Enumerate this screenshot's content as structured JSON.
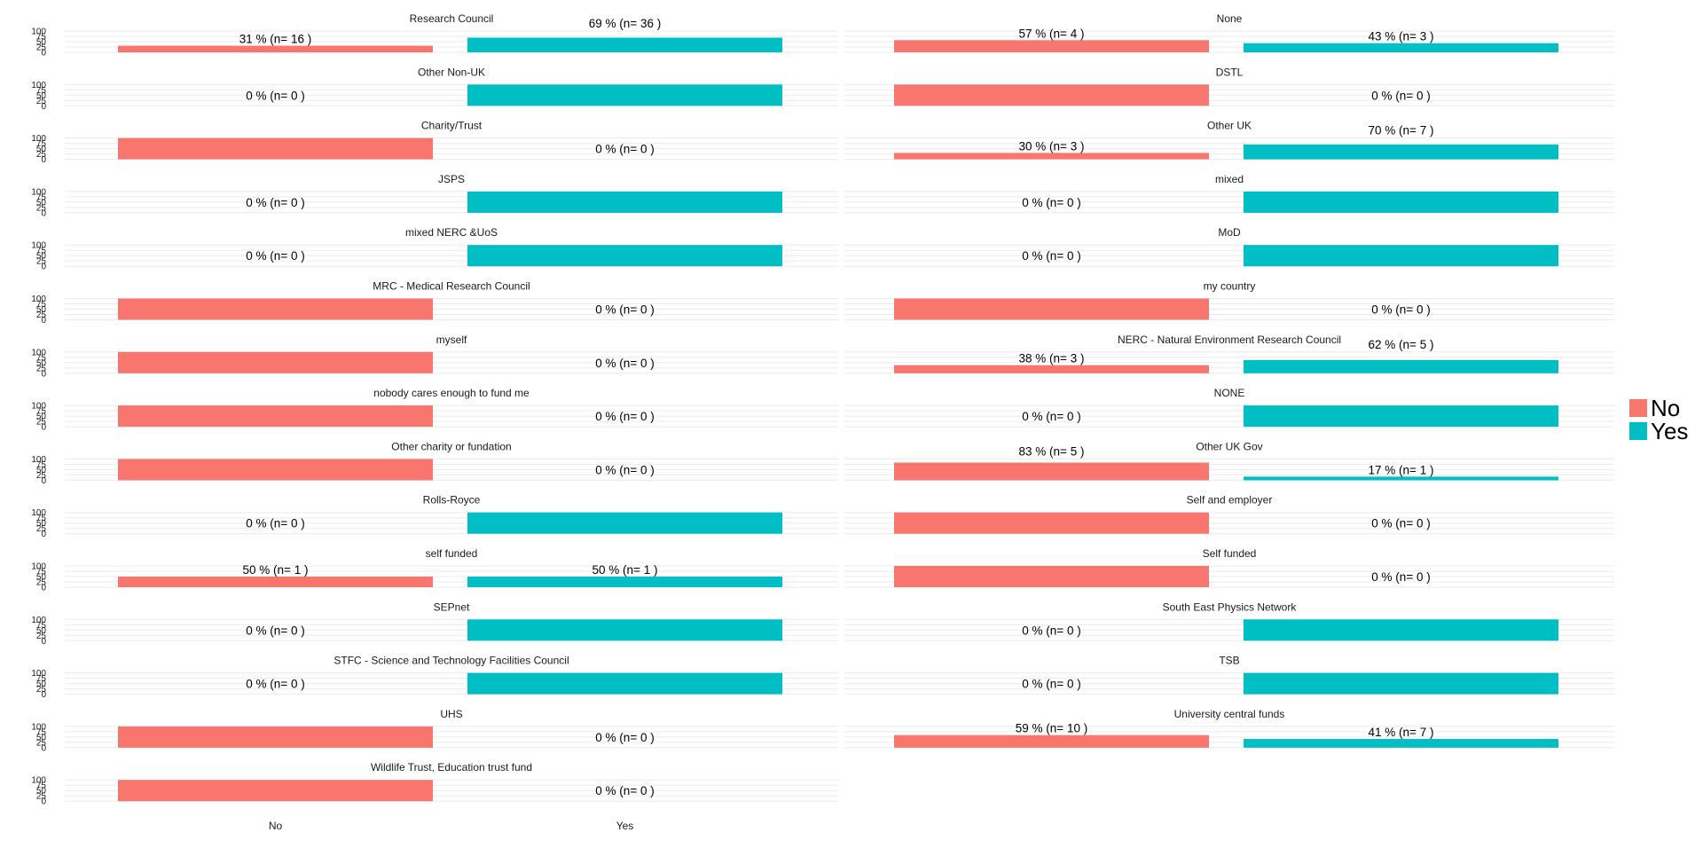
{
  "chart_data": {
    "type": "bar",
    "facet_columns": 2,
    "categories": [
      "No",
      "Yes"
    ],
    "y_ticks": [
      "100",
      "75",
      "50",
      "25",
      "0"
    ],
    "ylim": [
      0,
      100
    ],
    "colors": {
      "No": "#F8766D",
      "Yes": "#00BFC4"
    },
    "legend": {
      "position": "right",
      "entries": [
        "No",
        "Yes"
      ]
    },
    "xlabel": "",
    "ylabel": "",
    "panels": [
      {
        "title": "Research Council",
        "values": [
          31,
          69
        ],
        "labels": [
          "31 %  (n= 16 )",
          "69 %  (n= 36 )"
        ]
      },
      {
        "title": "None",
        "values": [
          57,
          43
        ],
        "labels": [
          "57 %  (n= 4 )",
          "43 %  (n= 3 )"
        ]
      },
      {
        "title": "Other Non-UK",
        "values": [
          0,
          100
        ],
        "labels": [
          "0 %  (n= 0 )",
          ""
        ]
      },
      {
        "title": "DSTL",
        "values": [
          100,
          0
        ],
        "labels": [
          "",
          "0 %  (n= 0 )"
        ]
      },
      {
        "title": "Charity/Trust",
        "values": [
          100,
          0
        ],
        "labels": [
          "",
          "0 %  (n= 0 )"
        ]
      },
      {
        "title": "Other UK",
        "values": [
          30,
          70
        ],
        "labels": [
          "30 %  (n= 3 )",
          "70 %  (n= 7 )"
        ]
      },
      {
        "title": "JSPS",
        "values": [
          0,
          100
        ],
        "labels": [
          "0 %  (n= 0 )",
          ""
        ]
      },
      {
        "title": "mixed",
        "values": [
          0,
          100
        ],
        "labels": [
          "0 %  (n= 0 )",
          ""
        ]
      },
      {
        "title": "mixed NERC &UoS",
        "values": [
          0,
          100
        ],
        "labels": [
          "0 %  (n= 0 )",
          ""
        ]
      },
      {
        "title": "MoD",
        "values": [
          0,
          100
        ],
        "labels": [
          "0 %  (n= 0 )",
          ""
        ]
      },
      {
        "title": "MRC - Medical Research Council",
        "values": [
          100,
          0
        ],
        "labels": [
          "",
          "0 %  (n= 0 )"
        ]
      },
      {
        "title": "my country",
        "values": [
          100,
          0
        ],
        "labels": [
          "",
          "0 %  (n= 0 )"
        ]
      },
      {
        "title": "myself",
        "values": [
          100,
          0
        ],
        "labels": [
          "",
          "0 %  (n= 0 )"
        ]
      },
      {
        "title": "NERC - Natural Environment Research Council",
        "values": [
          38,
          62
        ],
        "labels": [
          "38 %  (n= 3 )",
          "62 %  (n= 5 )"
        ]
      },
      {
        "title": "nobody cares enough to fund me",
        "values": [
          100,
          0
        ],
        "labels": [
          "",
          "0 %  (n= 0 )"
        ]
      },
      {
        "title": "NONE",
        "values": [
          0,
          100
        ],
        "labels": [
          "0 %  (n= 0 )",
          ""
        ]
      },
      {
        "title": "Other charity or fundation",
        "values": [
          100,
          0
        ],
        "labels": [
          "",
          "0 %  (n= 0 )"
        ]
      },
      {
        "title": "Other UK Gov",
        "values": [
          83,
          17
        ],
        "labels": [
          "83 %  (n= 5 )",
          "17 %  (n= 1 )"
        ]
      },
      {
        "title": "Rolls-Royce",
        "values": [
          0,
          100
        ],
        "labels": [
          "0 %  (n= 0 )",
          ""
        ]
      },
      {
        "title": "Self and employer",
        "values": [
          100,
          0
        ],
        "labels": [
          "",
          "0 %  (n= 0 )"
        ]
      },
      {
        "title": "self funded",
        "values": [
          50,
          50
        ],
        "labels": [
          "50 %  (n= 1 )",
          "50 %  (n= 1 )"
        ]
      },
      {
        "title": "Self funded",
        "values": [
          100,
          0
        ],
        "labels": [
          "",
          "0 %  (n= 0 )"
        ]
      },
      {
        "title": "SEPnet",
        "values": [
          0,
          100
        ],
        "labels": [
          "0 %  (n= 0 )",
          ""
        ]
      },
      {
        "title": "South East Physics Network",
        "values": [
          0,
          100
        ],
        "labels": [
          "0 %  (n= 0 )",
          ""
        ]
      },
      {
        "title": "STFC - Science and Technology Facilities Council",
        "values": [
          0,
          100
        ],
        "labels": [
          "0 %  (n= 0 )",
          ""
        ]
      },
      {
        "title": "TSB",
        "values": [
          0,
          100
        ],
        "labels": [
          "0 %  (n= 0 )",
          ""
        ]
      },
      {
        "title": "UHS",
        "values": [
          100,
          0
        ],
        "labels": [
          "",
          "0 %  (n= 0 )"
        ]
      },
      {
        "title": "University central funds",
        "values": [
          59,
          41
        ],
        "labels": [
          "59 %  (n= 10 )",
          "41 %  (n= 7 )"
        ]
      },
      {
        "title": "Wildlife Trust, Education trust fund",
        "values": [
          100,
          0
        ],
        "labels": [
          "",
          "0 %  (n= 0 )"
        ]
      }
    ]
  }
}
